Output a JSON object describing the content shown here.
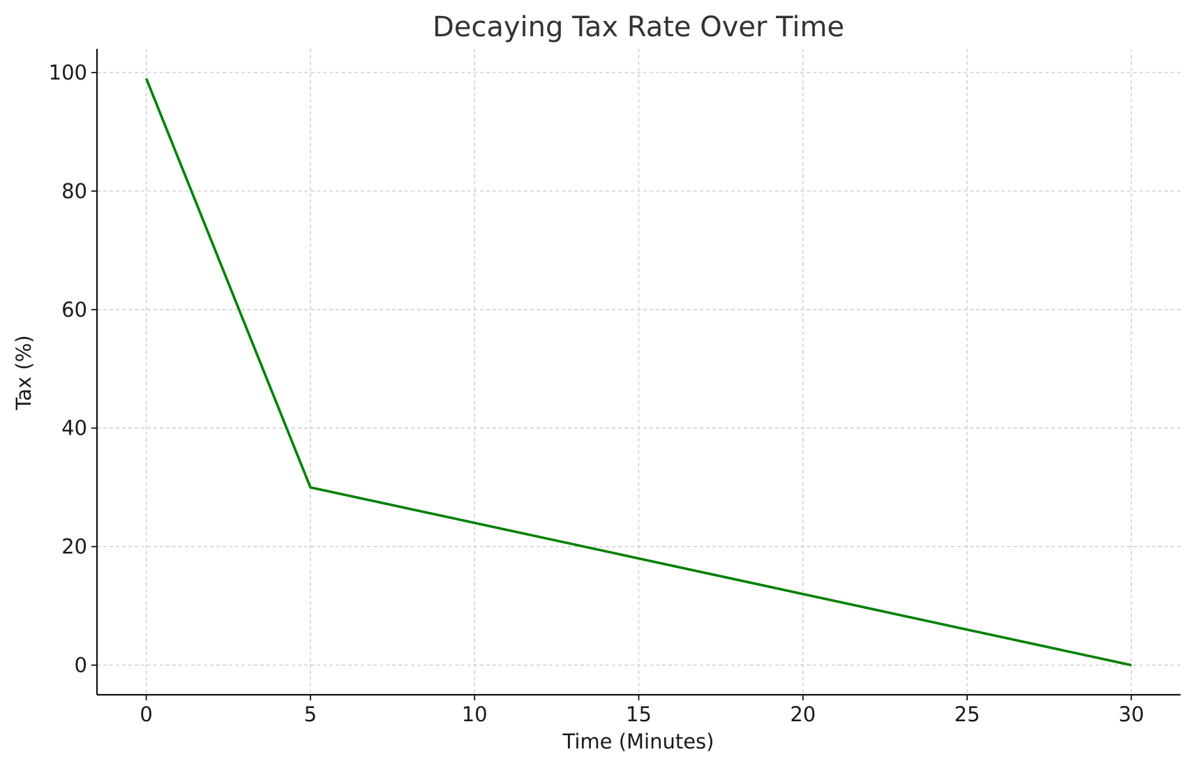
{
  "chart_data": {
    "type": "line",
    "title": "Decaying Tax Rate Over Time",
    "xlabel": "Time (Minutes)",
    "ylabel": "Tax (%)",
    "xlim": [
      -1.5,
      31.5
    ],
    "ylim": [
      -5,
      104
    ],
    "x_ticks": [
      0,
      5,
      10,
      15,
      20,
      25,
      30
    ],
    "y_ticks": [
      0,
      20,
      40,
      60,
      80,
      100
    ],
    "grid": true,
    "series": [
      {
        "color": "#008000",
        "x": [
          0,
          5,
          10,
          15,
          20,
          25,
          30
        ],
        "y": [
          99,
          30,
          24,
          18,
          12,
          6,
          0
        ]
      }
    ]
  }
}
